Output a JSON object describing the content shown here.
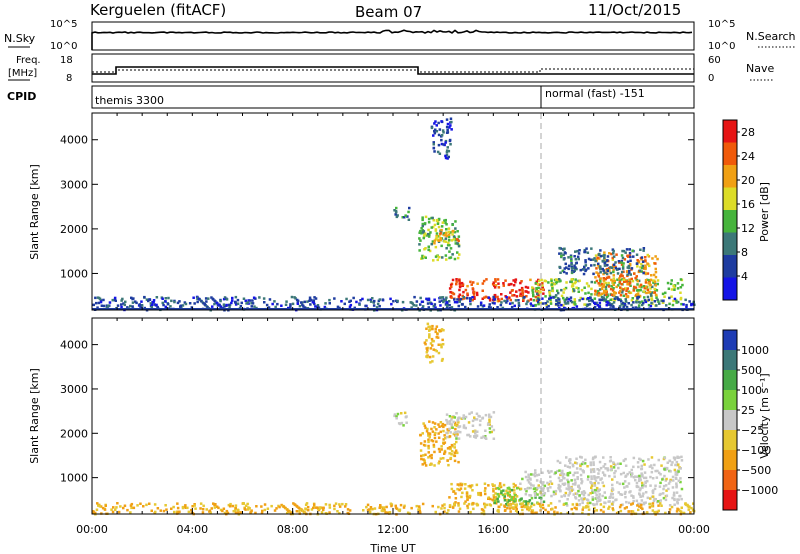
{
  "header": {
    "station": "Kerguelen (fitACF)",
    "beam": "Beam 07",
    "date": "11/Oct/2015"
  },
  "status_panel": {
    "nsky_label": "N.Sky",
    "nsky_ticks": [
      "10^5",
      "10^0"
    ],
    "nsearch_label": "N.Search",
    "nsearch_ticks": [
      "10^5",
      "10^0"
    ],
    "freq_label": "Freq.",
    "freq_unit": "[MHz]",
    "freq_ticks": [
      "18",
      "8"
    ],
    "nave_label": "Nave",
    "nave_ticks": [
      "60",
      "0"
    ],
    "cpid_label": "CPID",
    "cpid_segments": [
      {
        "name": "themis 3300",
        "start_hour": 0,
        "end_hour": 18
      },
      {
        "name": "normal (fast) -151",
        "start_hour": 18,
        "end_hour": 24
      }
    ]
  },
  "colors": {
    "power_scale": [
      "#1414e6",
      "#1e3ca0",
      "#3c7878",
      "#46b43c",
      "#dcdc28",
      "#f0a014",
      "#f05a0a",
      "#e61414"
    ],
    "velocity_scale": [
      "#1e3cb4",
      "#3c7878",
      "#46aa46",
      "#7ad23c",
      "#c8c8c8",
      "#e6c832",
      "#f0a014",
      "#f06414",
      "#e61414"
    ]
  },
  "chart_data": [
    {
      "type": "heatmap",
      "name_on_colorbar": "Power [dB]",
      "ylabel": "Slant Range [km]",
      "xlabel": "",
      "x_range_hours": [
        0,
        24
      ],
      "ylim": [
        180,
        4600
      ],
      "yticks": [
        "1000",
        "2000",
        "3000",
        "4000"
      ],
      "colorbar_ticks": [
        "4",
        "8",
        "12",
        "16",
        "20",
        "24",
        "28"
      ],
      "colorbar_range": [
        0,
        30
      ],
      "regions": [
        {
          "x": [
            13.0,
            14.6
          ],
          "y": [
            1300,
            2300
          ],
          "value": 14
        },
        {
          "x": [
            13.6,
            14.6
          ],
          "y": [
            1700,
            2000
          ],
          "value": 20
        },
        {
          "x": [
            12.0,
            12.6
          ],
          "y": [
            2200,
            2500
          ],
          "value": 10
        },
        {
          "x": [
            13.5,
            14.3
          ],
          "y": [
            3600,
            4500
          ],
          "value": 6
        },
        {
          "x": [
            14.2,
            18.0
          ],
          "y": [
            400,
            900
          ],
          "value": 26
        },
        {
          "x": [
            17.5,
            23.5
          ],
          "y": [
            300,
            900
          ],
          "value": 14
        },
        {
          "x": [
            20.0,
            22.5
          ],
          "y": [
            500,
            1500
          ],
          "value": 22
        },
        {
          "x": [
            18.5,
            22.0
          ],
          "y": [
            1000,
            1600
          ],
          "value": 8
        },
        {
          "x": [
            0.0,
            24.0
          ],
          "y": [
            200,
            500
          ],
          "value": 6
        }
      ]
    },
    {
      "type": "heatmap",
      "name_on_colorbar": "Velocity [m s⁻¹]",
      "ylabel": "Slant Range [km]",
      "xlabel": "Time UT",
      "x_range_hours": [
        0,
        24
      ],
      "ylim": [
        180,
        4600
      ],
      "yticks": [
        "1000",
        "2000",
        "3000",
        "4000"
      ],
      "xticks": [
        "00:00",
        "04:00",
        "08:00",
        "12:00",
        "16:00",
        "20:00",
        "00:00"
      ],
      "colorbar_ticks": [
        "1000",
        "500",
        "100",
        "25",
        "−25",
        "−100",
        "−500",
        "−1000"
      ],
      "regions": [
        {
          "x": [
            13.0,
            14.6
          ],
          "y": [
            1300,
            2300
          ],
          "value": -100
        },
        {
          "x": [
            14.0,
            16.0
          ],
          "y": [
            1900,
            2500
          ],
          "value": 0
        },
        {
          "x": [
            12.0,
            12.6
          ],
          "y": [
            2200,
            2500
          ],
          "value": 0
        },
        {
          "x": [
            13.2,
            14.0
          ],
          "y": [
            3600,
            4500
          ],
          "value": -100
        },
        {
          "x": [
            14.2,
            17.0
          ],
          "y": [
            400,
            900
          ],
          "value": -100
        },
        {
          "x": [
            16.0,
            18.0
          ],
          "y": [
            400,
            800
          ],
          "value": 100
        },
        {
          "x": [
            18.5,
            23.5
          ],
          "y": [
            400,
            1500
          ],
          "value": 0
        },
        {
          "x": [
            17.0,
            19.0
          ],
          "y": [
            600,
            1200
          ],
          "value": 0
        },
        {
          "x": [
            0.0,
            24.0
          ],
          "y": [
            200,
            450
          ],
          "value": -100
        }
      ]
    }
  ]
}
